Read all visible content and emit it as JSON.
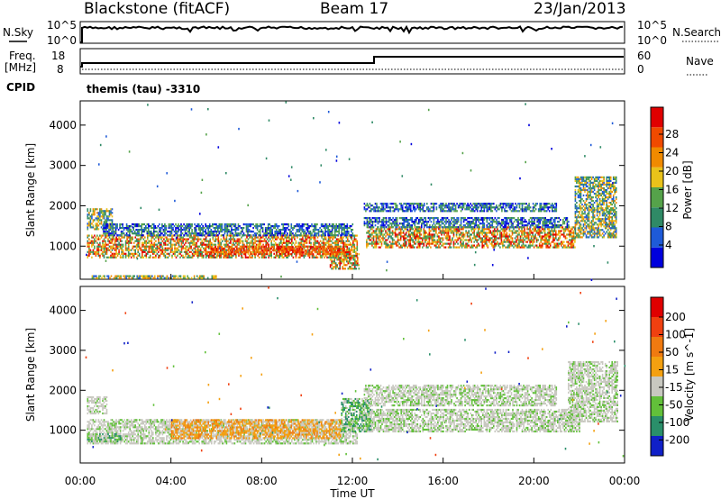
{
  "header": {
    "station": "Blackstone (fitACF)",
    "beam": "Beam 17",
    "date": "23/Jan/2013"
  },
  "noise_panel": {
    "left_label": "N.Sky",
    "right_label": "N.Search",
    "left_ticks": [
      "10^5",
      "10^0"
    ],
    "right_ticks": [
      "10^5",
      "10^0"
    ]
  },
  "freq_panel": {
    "left_label_line1": "Freq.",
    "left_label_line2": "[MHz]",
    "right_label": "Nave",
    "left_ticks": [
      "18",
      "8"
    ],
    "right_ticks": [
      "60",
      "0"
    ],
    "cpid_label": "CPID",
    "cpid_text": "themis (tau) -3310"
  },
  "chart_data": [
    {
      "type": "heatmap",
      "name": "power",
      "ylabel": "Slant Range [km]",
      "ylim": [
        180,
        4600
      ],
      "y_ticks": [
        "1000",
        "2000",
        "3000",
        "4000"
      ],
      "xlim": [
        0,
        24
      ],
      "colorbar_label": "Power [dB]",
      "colorbar_ticks": [
        "28",
        "24",
        "20",
        "16",
        "12",
        "8",
        "4"
      ],
      "colors": [
        "#0000dd",
        "#1e5ad8",
        "#2f8a66",
        "#55a24a",
        "#e9c21a",
        "#f08a00",
        "#f04a00",
        "#e00000"
      ],
      "bands": [
        {
          "x": [
            0.3,
            12.2
          ],
          "y": [
            700,
            1250
          ],
          "level": "high"
        },
        {
          "x": [
            5.5,
            11.8
          ],
          "y": [
            780,
            1000
          ],
          "level": "max"
        },
        {
          "x": [
            11.0,
            12.3
          ],
          "y": [
            420,
            800
          ],
          "level": "high"
        },
        {
          "x": [
            12.6,
            21.8
          ],
          "y": [
            950,
            1450
          ],
          "level": "high"
        },
        {
          "x": [
            21.8,
            23.6
          ],
          "y": [
            1200,
            2700
          ],
          "level": "mid"
        },
        {
          "x": [
            0.3,
            1.4
          ],
          "y": [
            1400,
            1900
          ],
          "level": "mid"
        },
        {
          "x": [
            1.0,
            12.0
          ],
          "y": [
            1250,
            1550
          ],
          "level": "low"
        },
        {
          "x": [
            12.5,
            21.5
          ],
          "y": [
            1450,
            1700
          ],
          "level": "low"
        },
        {
          "x": [
            12.5,
            21.0
          ],
          "y": [
            1850,
            2050
          ],
          "level": "low"
        },
        {
          "x": [
            0.5,
            6.0
          ],
          "y": [
            190,
            250
          ],
          "level": "mid"
        }
      ]
    },
    {
      "type": "heatmap",
      "name": "velocity",
      "ylabel": "Slant Range [km]",
      "ylim": [
        180,
        4600
      ],
      "y_ticks": [
        "1000",
        "2000",
        "3000",
        "4000"
      ],
      "xlim": [
        0,
        24
      ],
      "xlabel": "Time UT",
      "x_ticks": [
        "00:00",
        "04:00",
        "08:00",
        "12:00",
        "16:00",
        "20:00",
        "00:00"
      ],
      "colorbar_label": "Velocity [m s^-1]",
      "colorbar_ticks": [
        "200",
        "100",
        "50",
        "15",
        "-15",
        "-50",
        "-100",
        "-200"
      ],
      "colors": [
        "#1020c8",
        "#2a8f6a",
        "#62c03a",
        "#c8c8c0",
        "#f4a010",
        "#f07a10",
        "#f04010",
        "#e00000"
      ],
      "bands": [
        {
          "x": [
            0.3,
            12.2
          ],
          "y": [
            650,
            1250
          ],
          "level": "ground"
        },
        {
          "x": [
            4.0,
            11.5
          ],
          "y": [
            780,
            1250
          ],
          "level": "neg"
        },
        {
          "x": [
            0.3,
            1.8
          ],
          "y": [
            700,
            900
          ],
          "level": "pos"
        },
        {
          "x": [
            0.3,
            1.2
          ],
          "y": [
            1400,
            1850
          ],
          "level": "ground"
        },
        {
          "x": [
            12.5,
            22.0
          ],
          "y": [
            950,
            1500
          ],
          "level": "ground"
        },
        {
          "x": [
            12.5,
            21.0
          ],
          "y": [
            1600,
            2100
          ],
          "level": "ground"
        },
        {
          "x": [
            21.5,
            23.7
          ],
          "y": [
            1200,
            2700
          ],
          "level": "ground"
        },
        {
          "x": [
            11.5,
            12.8
          ],
          "y": [
            950,
            1800
          ],
          "level": "pos"
        }
      ]
    }
  ]
}
